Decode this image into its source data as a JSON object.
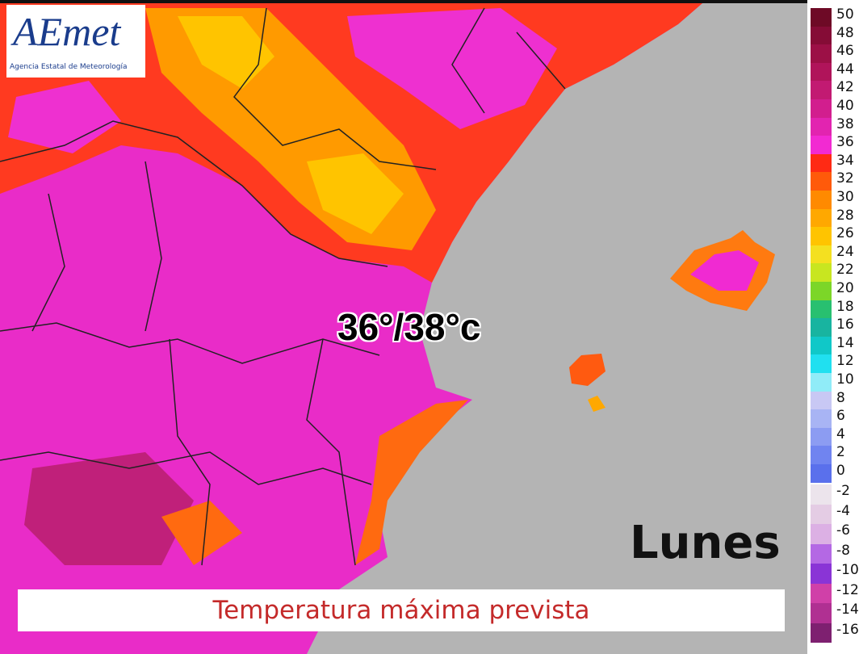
{
  "logo": {
    "name": "AEmet",
    "agency": "Agencia Estatal de Meteorología"
  },
  "annotation": "36°/38°c",
  "day": "Lunes",
  "caption": "Temperatura máxima prevista",
  "legend": {
    "positive": [
      {
        "label": "50",
        "color": "#6e0a26"
      },
      {
        "label": "48",
        "color": "#850c36"
      },
      {
        "label": "46",
        "color": "#9c1046"
      },
      {
        "label": "44",
        "color": "#b0145a"
      },
      {
        "label": "42",
        "color": "#c21a72"
      },
      {
        "label": "40",
        "color": "#d21e8e"
      },
      {
        "label": "38",
        "color": "#e224b0"
      },
      {
        "label": "36",
        "color": "#f22ad2"
      },
      {
        "label": "34",
        "color": "#ff2a14"
      },
      {
        "label": "32",
        "color": "#ff5a0a"
      },
      {
        "label": "30",
        "color": "#ff8a00"
      },
      {
        "label": "28",
        "color": "#ffa800"
      },
      {
        "label": "26",
        "color": "#ffc400"
      },
      {
        "label": "24",
        "color": "#f4e020"
      },
      {
        "label": "22",
        "color": "#c8e620"
      },
      {
        "label": "20",
        "color": "#7cd628"
      },
      {
        "label": "18",
        "color": "#28c070"
      },
      {
        "label": "16",
        "color": "#18b4a0"
      },
      {
        "label": "14",
        "color": "#10c8c8"
      },
      {
        "label": "12",
        "color": "#20e0f0"
      },
      {
        "label": "10",
        "color": "#90ecf8"
      },
      {
        "label": "8",
        "color": "#c8c8f4"
      },
      {
        "label": "6",
        "color": "#a8b4f4"
      },
      {
        "label": "4",
        "color": "#8c9cf2"
      },
      {
        "label": "2",
        "color": "#7084f0"
      },
      {
        "label": "0",
        "color": "#5a70ec"
      }
    ],
    "negative": [
      {
        "label": "-2",
        "color": "#ece4ec"
      },
      {
        "label": "-4",
        "color": "#e4cce4"
      },
      {
        "label": "-6",
        "color": "#dcb0e4"
      },
      {
        "label": "-8",
        "color": "#b468e4"
      },
      {
        "label": "-10",
        "color": "#8a34d6"
      },
      {
        "label": "-12",
        "color": "#d040a8"
      },
      {
        "label": "-14",
        "color": "#b03092"
      },
      {
        "label": "-16",
        "color": "#7e2070"
      }
    ]
  }
}
